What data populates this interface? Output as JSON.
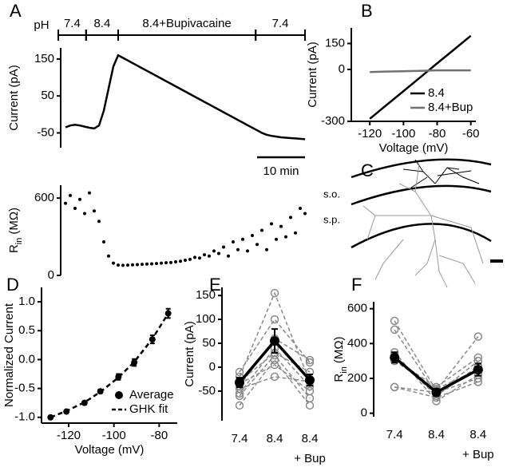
{
  "chart_data": [
    {
      "type": "line",
      "panel": "A",
      "ylabel": "Current (pA)",
      "ph_label": "pH",
      "ph_segments": [
        {
          "label": "7.4",
          "start": -1.5,
          "end": 4.3
        },
        {
          "label": "8.4",
          "start": 4.3,
          "end": 11
        },
        {
          "label": "8.4+Bupivacaine",
          "start": 11,
          "end": 39.7
        },
        {
          "label": "7.4",
          "start": 39.7,
          "end": 50
        }
      ],
      "scale_bar": {
        "value": 10,
        "label": "10 min"
      },
      "x": [
        0,
        1,
        2,
        3,
        4,
        5,
        6,
        7,
        8,
        9,
        10,
        11,
        12,
        13,
        14,
        15,
        16,
        17,
        18,
        19,
        20,
        21,
        22,
        23,
        24,
        25,
        26,
        27,
        28,
        29,
        30,
        31,
        32,
        33,
        34,
        35,
        36,
        37,
        38,
        39,
        40,
        41,
        42,
        43,
        44,
        45,
        46,
        47,
        48,
        49,
        50
      ],
      "values": [
        -35,
        -30,
        -28,
        -30,
        -33,
        -36,
        -38,
        -30,
        10,
        70,
        130,
        160,
        153,
        146,
        139,
        132,
        125,
        118,
        111,
        104,
        97,
        90,
        83,
        76,
        69,
        62,
        55,
        48,
        41,
        34,
        27,
        20,
        13,
        6,
        -1,
        -8,
        -15,
        -22,
        -29,
        -36,
        -43,
        -50,
        -55,
        -58,
        -60,
        -62,
        -63,
        -64,
        -65,
        -66,
        -67
      ],
      "color": "#000000",
      "xlim": [
        -1,
        50
      ],
      "ylim": [
        -90,
        180
      ],
      "yticks": [
        -50,
        50,
        150
      ]
    },
    {
      "type": "scatter",
      "ylabel": {
        "text": "R",
        "sub": "in",
        "unit": "(MΩ)"
      },
      "x": [
        0,
        1,
        2,
        3,
        4,
        5,
        6,
        7,
        8,
        9,
        10,
        11,
        12,
        13,
        14,
        15,
        16,
        17,
        18,
        19,
        20,
        21,
        22,
        23,
        24,
        25,
        26,
        27,
        28,
        29,
        30,
        31,
        32,
        33,
        34,
        35,
        36,
        37,
        38,
        39,
        40,
        41,
        42,
        43,
        44,
        45,
        46,
        47,
        48,
        49,
        50
      ],
      "values": [
        560,
        620,
        520,
        590,
        480,
        640,
        500,
        420,
        260,
        150,
        95,
        80,
        78,
        80,
        82,
        84,
        86,
        88,
        90,
        92,
        95,
        98,
        100,
        105,
        110,
        118,
        125,
        140,
        135,
        160,
        150,
        190,
        170,
        220,
        150,
        260,
        200,
        280,
        190,
        310,
        240,
        350,
        200,
        400,
        280,
        380,
        300,
        450,
        330,
        520,
        480
      ],
      "color": "#000000",
      "xlim": [
        -1,
        50
      ],
      "ylim": [
        0,
        700
      ],
      "yticks": [
        0,
        600
      ]
    },
    {
      "type": "line",
      "panel": "B",
      "xlabel": "Voltage (mV)",
      "ylabel": "Current (pA)",
      "x": [
        -120,
        -110,
        -100,
        -90,
        -80,
        -70,
        -60
      ],
      "series": [
        {
          "name": "8.4",
          "color": "#000000",
          "values": [
            -285,
            -205,
            -125,
            -45,
            35,
            115,
            195
          ]
        },
        {
          "name": "8.4+Bup",
          "color": "#707070",
          "values": [
            -15,
            -12,
            -10,
            -8,
            -5,
            -5,
            -5
          ]
        }
      ],
      "xlim": [
        -131,
        -57
      ],
      "xticks": [
        -120,
        -100,
        -80,
        -60
      ],
      "ylim": [
        -300,
        240
      ],
      "yticks": [
        -300,
        0,
        150
      ],
      "legend": "lower right"
    },
    {
      "type": "line",
      "panel": "D",
      "xlabel": "Voltage (mV)",
      "ylabel": "Normalized Current",
      "x": [
        -128,
        -121,
        -113,
        -106,
        -98,
        -91,
        -83,
        -76
      ],
      "series": [
        {
          "name": "Average",
          "color": "#000000",
          "marker": "circle",
          "values": [
            -1.0,
            -0.9,
            -0.75,
            -0.55,
            -0.3,
            -0.05,
            0.35,
            0.8
          ],
          "errors": [
            0.02,
            0.02,
            0.03,
            0.03,
            0.05,
            0.06,
            0.07,
            0.08
          ]
        },
        {
          "name": "GHK fit",
          "color": "#000000",
          "dash": true,
          "values": [
            -1.0,
            -0.89,
            -0.74,
            -0.56,
            -0.31,
            -0.04,
            0.36,
            0.8
          ]
        }
      ],
      "xlim": [
        -132,
        -72
      ],
      "xticks": [
        -120,
        -100,
        -80
      ],
      "ylim": [
        -1.1,
        1.25
      ],
      "yticks": [
        {
          "value": -1,
          "label": "-1.0"
        },
        -0.5,
        {
          "value": 0,
          "label": "0.0"
        },
        0.5,
        {
          "value": 1,
          "label": "1.0"
        }
      ],
      "legend": "lower right"
    },
    {
      "type": "paired",
      "panel": "E",
      "ylabel": "Current (pA)",
      "categories": [
        "7.4",
        "8.4",
        "8.4"
      ],
      "category_notes": [
        null,
        null,
        "+ Bup"
      ],
      "cells": [
        [
          -20,
          155,
          -30
        ],
        [
          -40,
          60,
          15
        ],
        [
          -55,
          40,
          -40
        ],
        [
          -30,
          30,
          -10
        ],
        [
          -60,
          25,
          -65
        ],
        [
          -80,
          15,
          -80
        ],
        [
          -10,
          100,
          10
        ],
        [
          -35,
          5,
          -50
        ],
        [
          -45,
          -20,
          -30
        ]
      ],
      "cell_color": "#8a8a8a",
      "mean": [
        -32,
        55,
        -27
      ],
      "errors": [
        10,
        25,
        12
      ],
      "color": "#000000",
      "ylim": [
        -112,
        167
      ],
      "yticks": [
        -50,
        0,
        50,
        100,
        150
      ]
    },
    {
      "type": "paired",
      "panel": "F",
      "ylabel": {
        "text": "R",
        "sub": "in",
        "unit": "(MΩ)"
      },
      "categories": [
        "7.4",
        "8.4",
        "8.4"
      ],
      "category_notes": [
        null,
        null,
        "+ Bup"
      ],
      "cells": [
        [
          530,
          130,
          440
        ],
        [
          480,
          110,
          300
        ],
        [
          330,
          100,
          270
        ],
        [
          300,
          140,
          250
        ],
        [
          150,
          120,
          200
        ],
        [
          150,
          90,
          180
        ],
        [
          350,
          70,
          220
        ],
        [
          310,
          150,
          320
        ]
      ],
      "cell_color": "#8a8a8a",
      "mean": [
        320,
        120,
        250
      ],
      "errors": [
        30,
        20,
        35
      ],
      "color": "#000000",
      "ylim": [
        -20,
        640
      ],
      "yticks": [
        0,
        200,
        400,
        600
      ]
    }
  ],
  "diagram": {
    "panel": "C",
    "labels": [
      "s.o.",
      "s.p."
    ]
  }
}
